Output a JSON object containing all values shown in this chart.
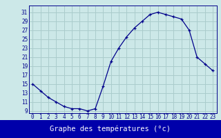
{
  "hours": [
    0,
    1,
    2,
    3,
    4,
    5,
    6,
    7,
    8,
    9,
    10,
    11,
    12,
    13,
    14,
    15,
    16,
    17,
    18,
    19,
    20,
    21,
    22,
    23
  ],
  "temps": [
    15,
    13.5,
    12,
    11,
    10,
    9.5,
    9.5,
    9,
    9.5,
    14.5,
    20,
    23,
    25.5,
    27.5,
    29,
    30.5,
    31,
    30.5,
    30,
    29.5,
    27,
    21,
    19.5,
    18
  ],
  "ylabel_vals": [
    9,
    11,
    13,
    15,
    17,
    19,
    21,
    23,
    25,
    27,
    29,
    31
  ],
  "xlabel": "Graphe des températures (°c)",
  "bg_color": "#cce8e8",
  "grid_color": "#aacccc",
  "line_color": "#00008b",
  "marker_color": "#00008b",
  "ylim": [
    8.5,
    32.5
  ],
  "xlim": [
    -0.5,
    23.5
  ],
  "xlabel_bg": "#0000aa",
  "xlabel_fg": "#ffffff",
  "tick_fontsize": 5.5,
  "xlabel_fontsize": 7.5
}
